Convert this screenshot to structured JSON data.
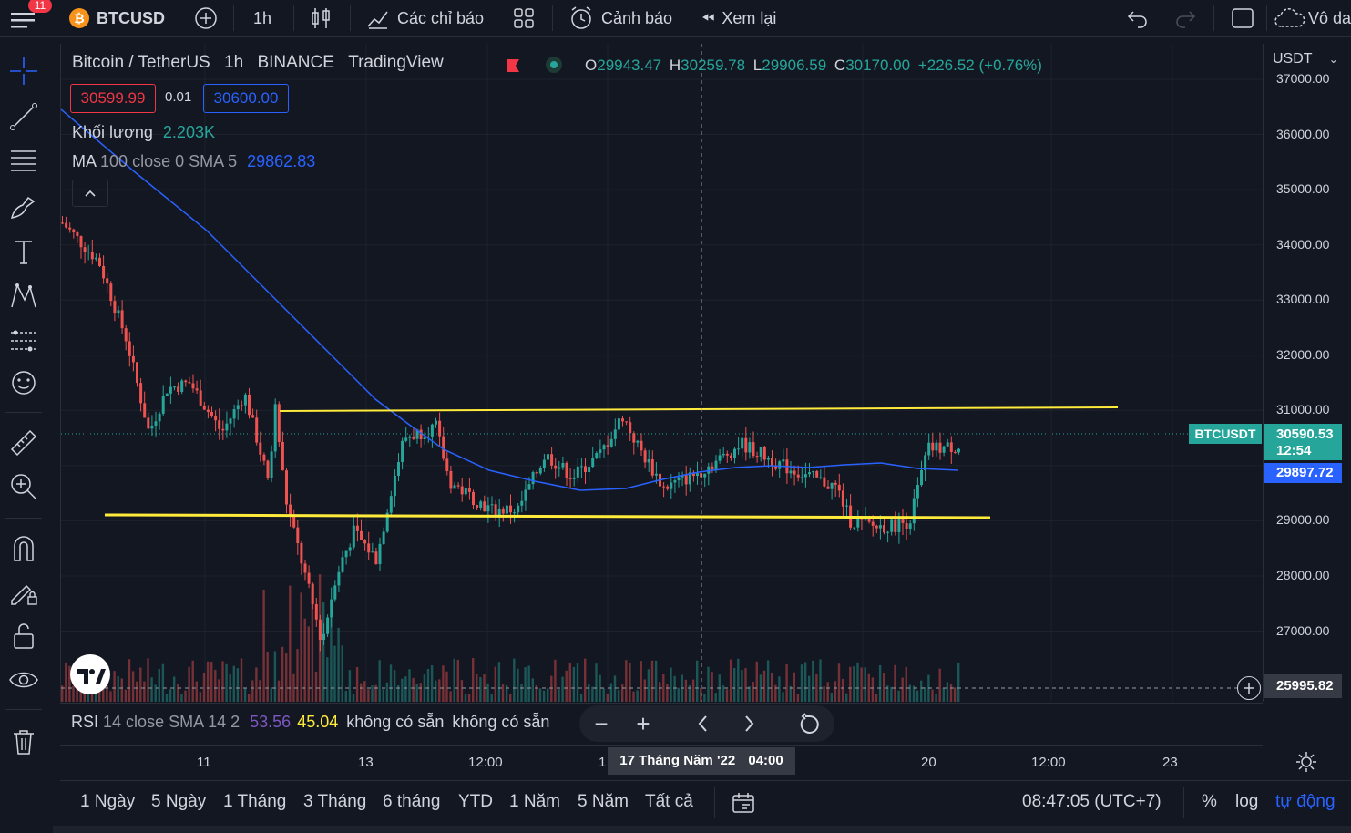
{
  "topbar": {
    "menu_badge": "11",
    "symbol": "BTCUSD",
    "interval": "1h",
    "indicators_label": "Các chỉ báo",
    "alert_label": "Cảnh báo",
    "replay_label": "Xem lại",
    "layout_label": "Vô da"
  },
  "legend": {
    "title": "Bitcoin / TetherUS",
    "interval": "1h",
    "exchange": "BINANCE",
    "provider": "TradingView",
    "open_label": "O",
    "open": "29943.47",
    "high_label": "H",
    "high": "30259.78",
    "low_label": "L",
    "low": "29906.59",
    "close_label": "C",
    "close": "30170.00",
    "change": "+226.52 (+0.76%)",
    "sell_price": "30599.99",
    "spread": "0.01",
    "buy_price": "30600.00",
    "volume_label": "Khối lượng",
    "volume_value": "2.203K",
    "ma_label": "MA",
    "ma_params": "100 close 0 SMA 5",
    "ma_value": "29862.83"
  },
  "price_axis": {
    "currency": "USDT",
    "ticks": [
      "37000.00",
      "36000.00",
      "35000.00",
      "34000.00",
      "33000.00",
      "32000.00",
      "31000.00",
      "29000.00",
      "28000.00",
      "27000.00"
    ],
    "symbol_tag": "BTCUSDT",
    "last_price": "30590.53",
    "countdown": "12:54",
    "ma_price": "29897.72",
    "crosshair_price": "25995.82",
    "colors": {
      "last": "#26a69a",
      "ma": "#2962ff"
    }
  },
  "rsi": {
    "label": "RSI",
    "params": "14 close SMA 14 2",
    "value1": "53.56",
    "value2": "45.04",
    "na1": "không có sẵn",
    "na2": "không có sẵn"
  },
  "time_axis": {
    "ticks": [
      "11",
      "13",
      "12:00",
      "1",
      "20",
      "12:00",
      "23"
    ],
    "crosshair_label": "17 Tháng Năm '22",
    "crosshair_time": "04:00"
  },
  "bottom": {
    "ranges": [
      "1 Ngày",
      "5 Ngày",
      "1 Tháng",
      "3 Tháng",
      "6 tháng",
      "YTD",
      "1 Năm",
      "5 Năm",
      "Tất cả"
    ],
    "clock": "08:47:05 (UTC+7)",
    "percent": "%",
    "log": "log",
    "auto": "tự động"
  },
  "chart_data": {
    "type": "candlestick",
    "ohlc_last": {
      "o": 29943.47,
      "h": 30259.78,
      "l": 29906.59,
      "c": 30170.0
    },
    "ylim": [
      26000,
      37200
    ],
    "support_line": 29050,
    "resistance_line": 31020,
    "ma_overlay": "MA 100"
  }
}
